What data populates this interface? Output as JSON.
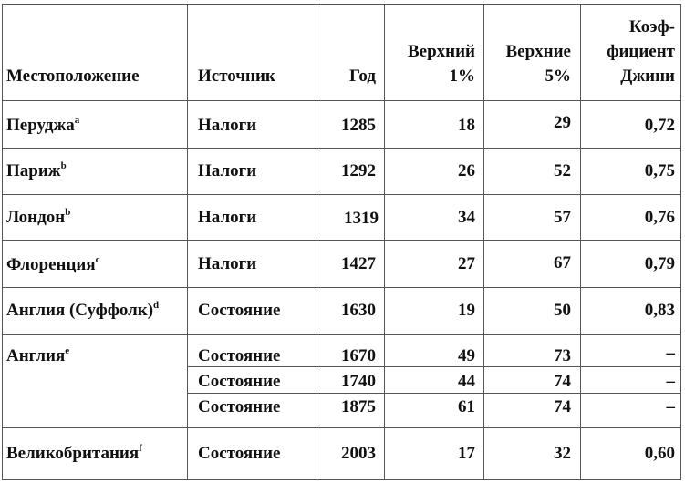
{
  "table": {
    "headers": {
      "location": "Местоположение",
      "source": "Источник",
      "year": "Год",
      "top1_line1": "Верхний",
      "top1_line2": "1%",
      "top5_line1": "Верхние",
      "top5_line2": "5%",
      "gini_line1": "Коэф-",
      "gini_line2": "фициент",
      "gini_line3": "Джини"
    },
    "rows": [
      {
        "location": "Перуджа",
        "sup": "a",
        "source": "Налоги",
        "year": "1285",
        "top1": "18",
        "top5": "29",
        "gini": "0,72"
      },
      {
        "location": "Париж",
        "sup": "b",
        "source": "Налоги",
        "year": "1292",
        "top1": "26",
        "top5": "52",
        "gini": "0,75"
      },
      {
        "location": "Лондон",
        "sup": "b",
        "source": "Налоги",
        "year": "1319",
        "top1": "34",
        "top5": "57",
        "gini": "0,76"
      },
      {
        "location": "Флоренция",
        "sup": "c",
        "source": "Налоги",
        "year": "1427",
        "top1": "27",
        "top5": "67",
        "gini": "0,79"
      },
      {
        "location": "Англия (Суффолк)",
        "sup": "d",
        "source": "Состояние",
        "year": "1630",
        "top1": "19",
        "top5": "50",
        "gini": "0,83"
      },
      {
        "location": "Англия",
        "sup": "e",
        "source": "Состояние",
        "year": "1670",
        "top1": "49",
        "top5": "73",
        "gini": "–"
      },
      {
        "location": "",
        "sup": "",
        "source": "Состояние",
        "year": "1740",
        "top1": "44",
        "top5": "74",
        "gini": "–"
      },
      {
        "location": "",
        "sup": "",
        "source": "Состояние",
        "year": "1875",
        "top1": "61",
        "top5": "74",
        "gini": "–"
      },
      {
        "location": "Великобритания",
        "sup": "f",
        "source": "Состояние",
        "year": "2003",
        "top1": "17",
        "top5": "32",
        "gini": "0,60"
      }
    ]
  }
}
